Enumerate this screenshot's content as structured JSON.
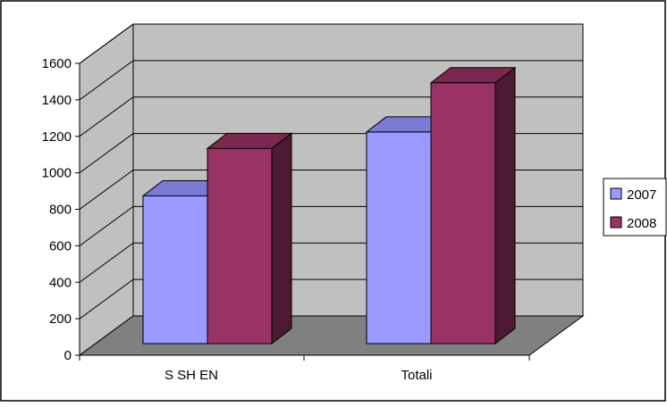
{
  "chart_data": {
    "type": "bar",
    "style": "3d-clustered-column",
    "categories": [
      "S SH EN",
      "Totali"
    ],
    "series": [
      {
        "name": "2007",
        "values": [
          810,
          1160
        ],
        "color": "#9999ff"
      },
      {
        "name": "2008",
        "values": [
          1070,
          1430
        ],
        "color": "#993366"
      }
    ],
    "ylim": [
      0,
      1600
    ],
    "yticks": [
      "0",
      "200",
      "400",
      "600",
      "800",
      "1000",
      "1200",
      "1400",
      "1600"
    ],
    "grid": true,
    "legend": "right",
    "colors": {
      "wall": "#c0c0c0",
      "floor": "#808080",
      "frame": "#000000"
    }
  }
}
